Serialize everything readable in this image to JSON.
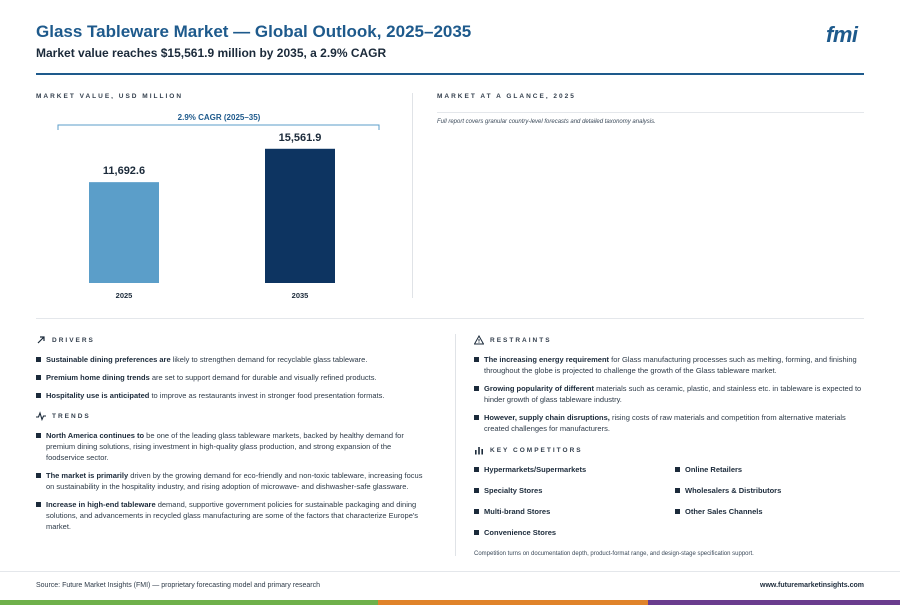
{
  "header": {
    "title": "Glass Tableware Market — Global Outlook, 2025–2035",
    "subtitle": "Market value reaches $15,561.9 million by 2035, a 2.9% CAGR",
    "logo": "fmi"
  },
  "market_value": {
    "label": "MARKET VALUE, USD MILLION",
    "cagr_label": "2.9% CAGR (2025–35)"
  },
  "chart_data": {
    "type": "bar",
    "categories": [
      "2025",
      "2035"
    ],
    "values": [
      11692.6,
      15561.9
    ],
    "value_labels": [
      "11,692.6",
      "15,561.9"
    ],
    "colors": [
      "#5b9ec9",
      "#0d3461"
    ],
    "ylim": [
      0,
      16000
    ]
  },
  "glance": {
    "label": "MARKET AT A GLANCE, 2025",
    "note": "Full report covers granular country-level forecasts and detailed taxonomy analysis."
  },
  "drivers": {
    "label": "DRIVERS",
    "items": [
      {
        "bold": "Sustainable dining preferences are",
        "text": " likely to strengthen demand for recyclable glass tableware."
      },
      {
        "bold": "Premium home dining trends",
        "text": " are set to support demand for durable and visually refined products."
      },
      {
        "bold": "Hospitality use is anticipated",
        "text": " to improve as restaurants invest in stronger food presentation formats."
      }
    ]
  },
  "trends": {
    "label": "TRENDS",
    "items": [
      {
        "bold": "North America continues to",
        "text": " be one of the leading glass tableware markets, backed by healthy demand for premium dining solutions, rising investment in high-quality glass production, and strong expansion of the foodservice sector."
      },
      {
        "bold": "The market is primarily",
        "text": " driven by the growing demand for eco-friendly and non-toxic tableware, increasing focus on sustainability in the hospitality industry, and rising adoption of microwave- and dishwasher-safe glassware."
      },
      {
        "bold": "Increase in high-end tableware",
        "text": " demand, supportive government policies for sustainable packaging and dining solutions, and advancements in recycled glass manufacturing are some of the factors that characterize Europe's market."
      }
    ]
  },
  "restraints": {
    "label": "RESTRAINTS",
    "items": [
      {
        "bold": "The increasing energy requirement",
        "text": " for Glass manufacturing processes such as melting, forming, and finishing throughout the globe is projected to challenge the growth of the Glass tableware market."
      },
      {
        "bold": "Growing popularity of different",
        "text": " materials such as ceramic, plastic, and stainless etc. in tableware is expected to hinder growth of glass tableware industry."
      },
      {
        "bold": "However, supply chain disruptions,",
        "text": " rising costs of raw materials and competition from alternative materials created challenges for manufacturers."
      }
    ]
  },
  "competitors": {
    "label": "KEY COMPETITORS",
    "items": [
      "Hypermarkets/Supermarkets",
      "Online Retailers",
      "Specialty Stores",
      "Wholesalers & Distributors",
      "Multi-brand Stores",
      "Other Sales Channels",
      "Convenience Stores"
    ],
    "note": "Competition turns on documentation depth, product-format range, and design-stage specification support."
  },
  "footer": {
    "source": "Source: Future Market Insights (FMI) — proprietary forecasting model and primary research",
    "url": "www.futuremarketinsights.com",
    "band_colors": [
      "#6fb04a",
      "#e0832a",
      "#6a3c8e"
    ]
  }
}
